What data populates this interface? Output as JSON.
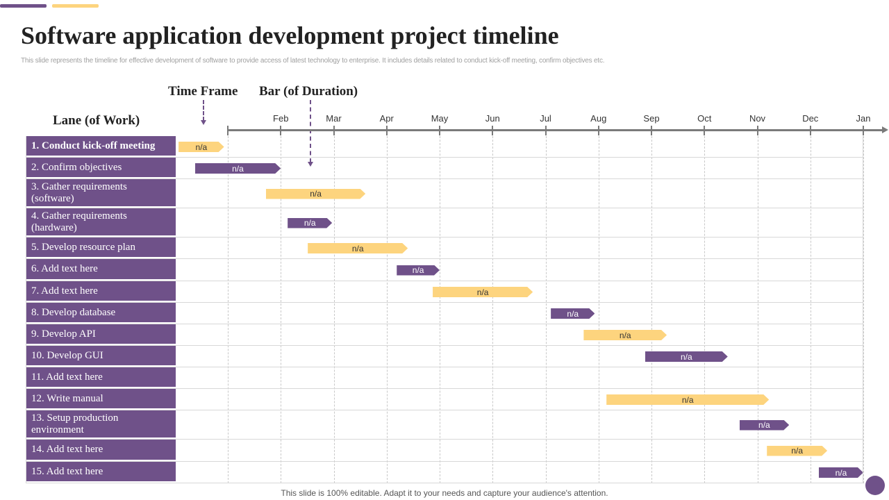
{
  "title": "Software application development project timeline",
  "subtitle": "This slide represents the timeline  for effective development of software to provide access of latest technology to enterprise. It includes details related to conduct kick-off meeting, confirm objectives etc.",
  "headers": {
    "time_frame": "Time Frame",
    "bar": "Bar (of Duration)",
    "lane": "Lane (of Work)"
  },
  "colors": {
    "purple": "#6f5189",
    "yellow": "#fdd47e"
  },
  "chart_data": {
    "type": "gantt",
    "months": [
      "Feb",
      "Mar",
      "Apr",
      "May",
      "Jun",
      "Jul",
      "Aug",
      "Sep",
      "Oct",
      "Nov",
      "Dec",
      "Jan"
    ],
    "tasks": [
      {
        "lane": "1. Conduct kick-off meeting",
        "label": "n/a",
        "start": -0.93,
        "end": -0.07,
        "color": "yellow"
      },
      {
        "lane": "2. Confirm objectives",
        "label": "n/a",
        "start": -0.62,
        "end": 1.0,
        "color": "purple"
      },
      {
        "lane": "3. Gather requirements (software)",
        "label": "n/a",
        "start": 0.72,
        "end": 2.6,
        "color": "yellow"
      },
      {
        "lane": "4. Gather requirements (hardware)",
        "label": "n/a",
        "start": 1.13,
        "end": 1.97,
        "color": "purple"
      },
      {
        "lane": "5. Develop resource plan",
        "label": "n/a",
        "start": 1.51,
        "end": 3.4,
        "color": "yellow"
      },
      {
        "lane": "6. Add text here",
        "label": "n/a",
        "start": 3.19,
        "end": 4.0,
        "color": "purple"
      },
      {
        "lane": "7. Add text here",
        "label": "n/a",
        "start": 3.87,
        "end": 5.76,
        "color": "yellow"
      },
      {
        "lane": "8. Develop database",
        "label": "n/a",
        "start": 6.1,
        "end": 6.93,
        "color": "purple"
      },
      {
        "lane": "9. Develop API",
        "label": "n/a",
        "start": 6.72,
        "end": 8.29,
        "color": "yellow"
      },
      {
        "lane": "10. Develop GUI",
        "label": "n/a",
        "start": 7.88,
        "end": 9.44,
        "color": "purple"
      },
      {
        "lane": "11. Add text here"
      },
      {
        "lane": "12. Write manual",
        "label": "n/a",
        "start": 7.15,
        "end": 10.22,
        "color": "yellow"
      },
      {
        "lane": "13. Setup production environment",
        "label": "n/a",
        "start": 9.66,
        "end": 10.6,
        "color": "purple"
      },
      {
        "lane": "14. Add text here",
        "label": "n/a",
        "start": 10.18,
        "end": 11.32,
        "color": "yellow"
      },
      {
        "lane": "15. Add text here",
        "label": "n/a",
        "start": 11.16,
        "end": 12.0,
        "color": "purple"
      }
    ]
  },
  "footer": "This slide is 100% editable. Adapt it to your needs and capture your audience's attention."
}
